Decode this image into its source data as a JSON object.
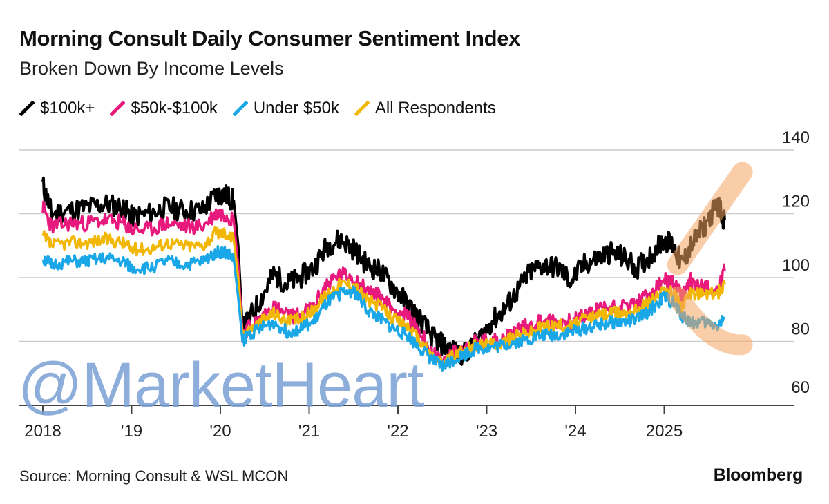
{
  "colors": {
    "high": "#000000",
    "mid": "#e8197d",
    "low": "#1aa7e8",
    "all": "#f2b705",
    "highlight": "#f4a460",
    "grid": "#cccccc"
  },
  "source": "Source: Morning Consult & WSL MCON",
  "brand": "Bloomberg",
  "watermark": "@MarketHeart",
  "chart_data": {
    "type": "line",
    "title": "Morning Consult Daily Consumer Sentiment Index",
    "subtitle": "Broken Down By Income Levels",
    "xlabel": "",
    "ylabel": "",
    "ylim": [
      60,
      140
    ],
    "yticks": [
      60,
      80,
      100,
      120,
      140
    ],
    "xlim": [
      2018.0,
      2025.9
    ],
    "xticks": [
      {
        "x": 2018,
        "label": "2018"
      },
      {
        "x": 2019,
        "label": "'19"
      },
      {
        "x": 2020,
        "label": "'20"
      },
      {
        "x": 2021,
        "label": "'21"
      },
      {
        "x": 2022,
        "label": "'22"
      },
      {
        "x": 2023,
        "label": "'23"
      },
      {
        "x": 2024,
        "label": "'24"
      },
      {
        "x": 2025,
        "label": "2025"
      }
    ],
    "legend": [
      {
        "key": "high",
        "label": "$100k+"
      },
      {
        "key": "mid",
        "label": "$50k-$100k"
      },
      {
        "key": "low",
        "label": "Under $50k"
      },
      {
        "key": "all",
        "label": "All Respondents"
      }
    ],
    "x": [
      2018.0,
      2018.1,
      2018.3,
      2018.5,
      2018.7,
      2018.9,
      2019.0,
      2019.2,
      2019.4,
      2019.6,
      2019.8,
      2019.95,
      2020.05,
      2020.15,
      2020.2,
      2020.25,
      2020.3,
      2020.45,
      2020.6,
      2020.75,
      2020.9,
      2021.05,
      2021.2,
      2021.35,
      2021.5,
      2021.65,
      2021.8,
      2021.95,
      2022.1,
      2022.25,
      2022.4,
      2022.5,
      2022.6,
      2022.75,
      2022.9,
      2023.05,
      2023.2,
      2023.35,
      2023.5,
      2023.65,
      2023.8,
      2023.95,
      2024.1,
      2024.25,
      2024.4,
      2024.55,
      2024.7,
      2024.85,
      2025.0,
      2025.1,
      2025.2,
      2025.3,
      2025.45,
      2025.6,
      2025.68
    ],
    "series": [
      {
        "key": "high",
        "name": "$100k+",
        "values": [
          129,
          120,
          121,
          122,
          123,
          122,
          119,
          120,
          122,
          121,
          121,
          126,
          126,
          124,
          110,
          83,
          86,
          93,
          101,
          98,
          100,
          103,
          110,
          112,
          109,
          104,
          102,
          97,
          92,
          87,
          81,
          79,
          77,
          76,
          80,
          86,
          90,
          96,
          102,
          104,
          103,
          99,
          104,
          106,
          108,
          106,
          103,
          107,
          112,
          110,
          104,
          110,
          116,
          123,
          118
        ]
      },
      {
        "key": "mid",
        "name": "$50k-$100k",
        "values": [
          122,
          116,
          117,
          117,
          118,
          117,
          115,
          115,
          117,
          116,
          116,
          120,
          120,
          118,
          104,
          82,
          84,
          87,
          91,
          88,
          88,
          91,
          98,
          101,
          100,
          96,
          94,
          90,
          88,
          83,
          76,
          73,
          76,
          78,
          80,
          80,
          81,
          84,
          85,
          87,
          86,
          86,
          88,
          90,
          91,
          91,
          92,
          95,
          99,
          98,
          94,
          99,
          97,
          96,
          102
        ]
      },
      {
        "key": "all",
        "name": "All Respondents",
        "values": [
          113,
          110,
          111,
          111,
          112,
          111,
          109,
          109,
          111,
          110,
          110,
          114,
          114,
          112,
          100,
          81,
          83,
          86,
          89,
          86,
          87,
          90,
          95,
          98,
          98,
          93,
          91,
          87,
          85,
          80,
          75,
          73,
          75,
          77,
          79,
          79,
          80,
          82,
          83,
          85,
          85,
          85,
          87,
          88,
          89,
          89,
          90,
          93,
          96,
          95,
          91,
          95,
          95,
          95,
          98
        ]
      },
      {
        "key": "low",
        "name": "Under $50k",
        "values": [
          106,
          104,
          105,
          105,
          106,
          105,
          103,
          103,
          105,
          104,
          105,
          108,
          108,
          106,
          94,
          80,
          82,
          84,
          86,
          83,
          84,
          86,
          92,
          95,
          96,
          90,
          87,
          84,
          82,
          78,
          74,
          72,
          74,
          76,
          78,
          78,
          79,
          80,
          81,
          82,
          82,
          83,
          84,
          85,
          86,
          86,
          87,
          90,
          94,
          92,
          88,
          86,
          86,
          85,
          87
        ]
      }
    ],
    "annotations": [
      "highlight-band-upper",
      "highlight-band-lower"
    ]
  }
}
